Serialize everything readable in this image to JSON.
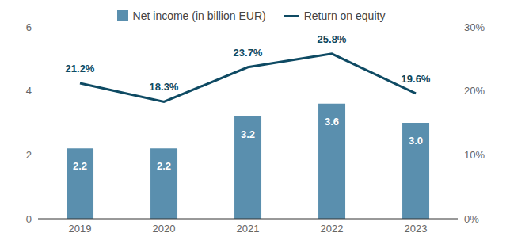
{
  "chart_data": {
    "type": "bar",
    "categories": [
      "2019",
      "2020",
      "2021",
      "2022",
      "2023"
    ],
    "series": [
      {
        "name": "Net income (in billion EUR)",
        "type": "bar",
        "color": "#5a8fae",
        "values": [
          2.2,
          2.2,
          3.2,
          3.6,
          3.0
        ],
        "value_labels": [
          "2.2",
          "2.2",
          "3.2",
          "3.6",
          "3.0"
        ]
      },
      {
        "name": "Return on equity",
        "type": "line",
        "axis": "y2",
        "color": "#0e4a63",
        "values": [
          21.2,
          18.3,
          23.7,
          25.8,
          19.6
        ],
        "value_labels": [
          "21.2%",
          "18.3%",
          "23.7%",
          "25.8%",
          "19.6%"
        ]
      }
    ],
    "ylim": [
      0,
      6
    ],
    "yticks": [
      0,
      2,
      4,
      6
    ],
    "y2lim": [
      0,
      30
    ],
    "y2ticks": [
      {
        "value": 0,
        "label": "0%"
      },
      {
        "value": 10,
        "label": "10%"
      },
      {
        "value": 20,
        "label": "20%"
      },
      {
        "value": 30,
        "label": "30%"
      }
    ],
    "legend": "top",
    "data_labels": true,
    "grid": false
  }
}
